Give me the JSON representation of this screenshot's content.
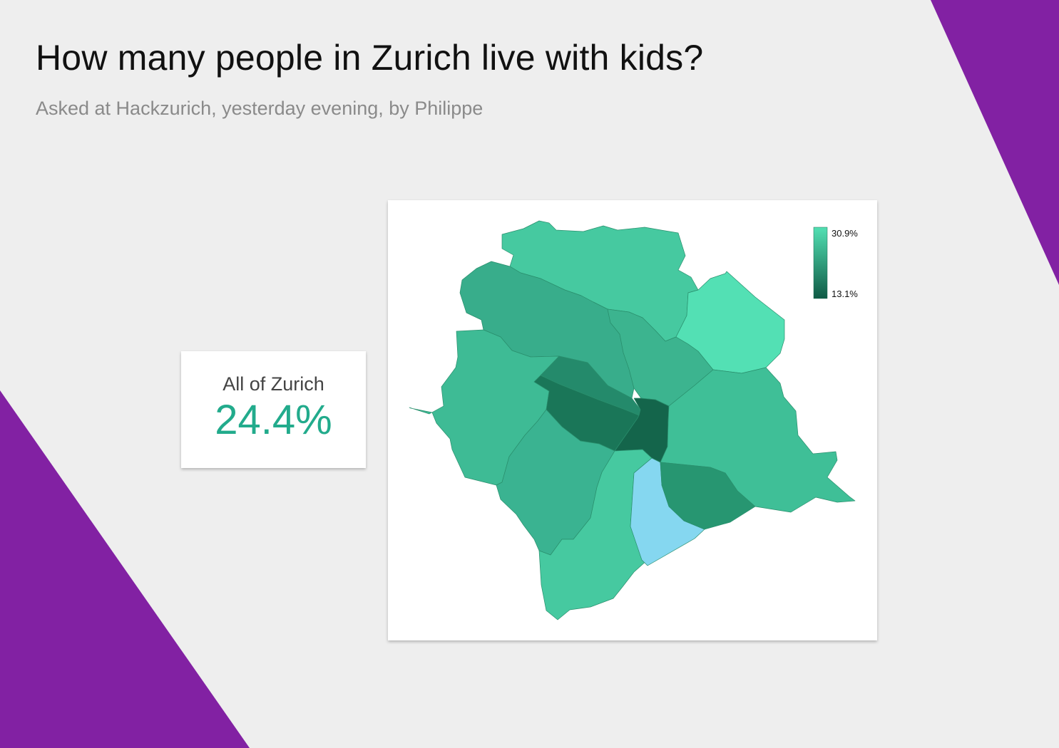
{
  "header": {
    "title": "How many people in Zurich live with kids?",
    "subtitle": "Asked at Hackzurich, yesterday evening, by Philippe"
  },
  "summary": {
    "label": "All of Zurich",
    "value": "24.4%"
  },
  "map": {
    "legend": {
      "max_label": "30.9%",
      "min_label": "13.1%",
      "color_max": "#52e0b3",
      "color_min": "#0f5a45"
    },
    "districts": [
      {
        "id": "north",
        "color": "#46c9a0"
      },
      {
        "id": "northwest",
        "color": "#38ad8b"
      },
      {
        "id": "north-central",
        "color": "#3cb48f"
      },
      {
        "id": "northeast",
        "color": "#53e0b4"
      },
      {
        "id": "west",
        "color": "#3ebb95"
      },
      {
        "id": "inner-north",
        "color": "#248a6b"
      },
      {
        "id": "inner-west",
        "color": "#1a7658"
      },
      {
        "id": "old-town",
        "color": "#14654b"
      },
      {
        "id": "east",
        "color": "#3fbf97"
      },
      {
        "id": "southwest",
        "color": "#3ab391"
      },
      {
        "id": "south",
        "color": "#46c9a0"
      },
      {
        "id": "lake",
        "color": "#85d7f0"
      },
      {
        "id": "southeast-shore",
        "color": "#279671"
      }
    ]
  }
}
